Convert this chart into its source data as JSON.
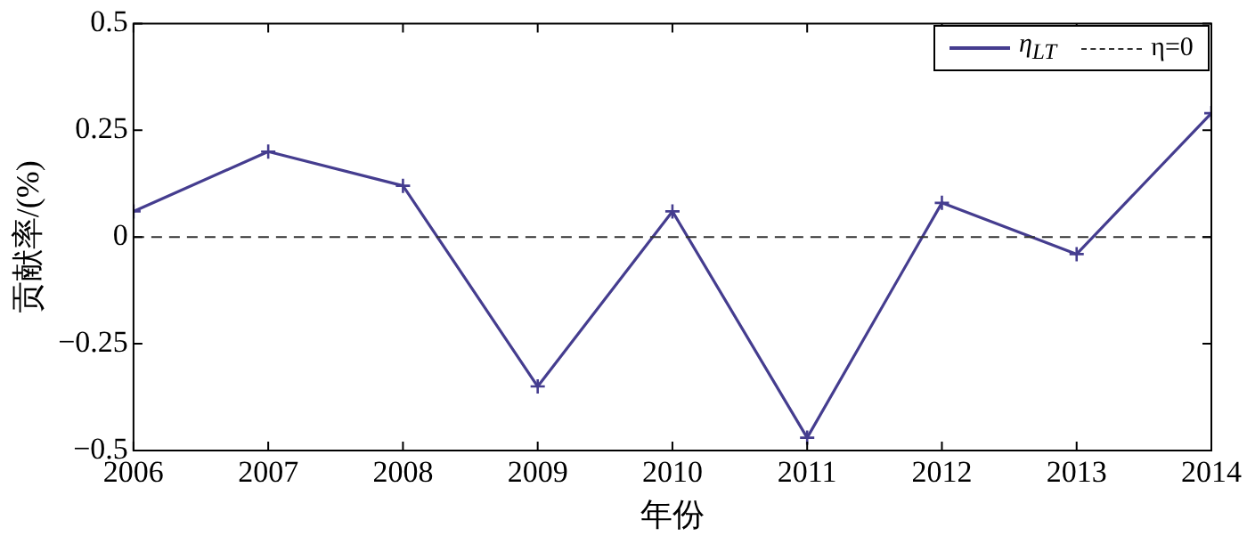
{
  "chart_data": {
    "type": "line",
    "xlabel": "年份",
    "ylabel": "贡献率/(%)",
    "x": [
      2006,
      2007,
      2008,
      2009,
      2010,
      2011,
      2012,
      2013,
      2014
    ],
    "series": [
      {
        "name": "η$_{LT}$",
        "color": "#453d8f",
        "values": [
          0.06,
          0.2,
          0.12,
          -0.35,
          0.06,
          -0.47,
          0.08,
          -0.04,
          0.29
        ]
      }
    ],
    "xlim": [
      2006,
      2014
    ],
    "xticks": [
      2006,
      2007,
      2008,
      2009,
      2010,
      2011,
      2012,
      2013,
      2014
    ],
    "ylim": [
      -0.5,
      0.5
    ],
    "yticks": [
      -0.5,
      -0.25,
      0,
      0.25,
      0.5
    ],
    "ref_lines": [
      {
        "axis": "y",
        "value": 0,
        "label": "η=0",
        "color": "#333333",
        "line_style": "dashed"
      }
    ],
    "marker": "cross",
    "line_style": "solid",
    "legend": "top right",
    "grid": false
  }
}
